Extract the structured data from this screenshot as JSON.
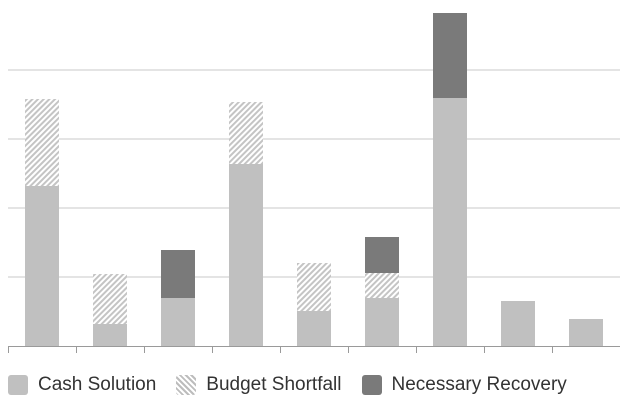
{
  "chart_data": {
    "type": "bar",
    "stacked": true,
    "categories": [
      "",
      "",
      "",
      "",
      "",
      "",
      "",
      "",
      ""
    ],
    "series": [
      {
        "name": "Cash Solution",
        "color": "#c0c0c0",
        "pattern": "solid",
        "values": [
          160,
          22,
          48,
          182,
          35,
          48,
          248,
          45,
          27
        ]
      },
      {
        "name": "Budget Shortfall",
        "color": "#c0c0c0",
        "pattern": "hatch",
        "values": [
          87,
          50,
          0,
          62,
          48,
          25,
          0,
          0,
          0
        ]
      },
      {
        "name": "Necessary Recovery",
        "color": "#7a7a7a",
        "pattern": "solid",
        "values": [
          0,
          0,
          48,
          0,
          0,
          36,
          85,
          0,
          0
        ]
      }
    ],
    "ylim": [
      0,
      340
    ],
    "ygrid": [
      0,
      69,
      138,
      207,
      276
    ],
    "grid": true,
    "legend_position": "bottom",
    "title": "",
    "xlabel": "",
    "ylabel": ""
  }
}
